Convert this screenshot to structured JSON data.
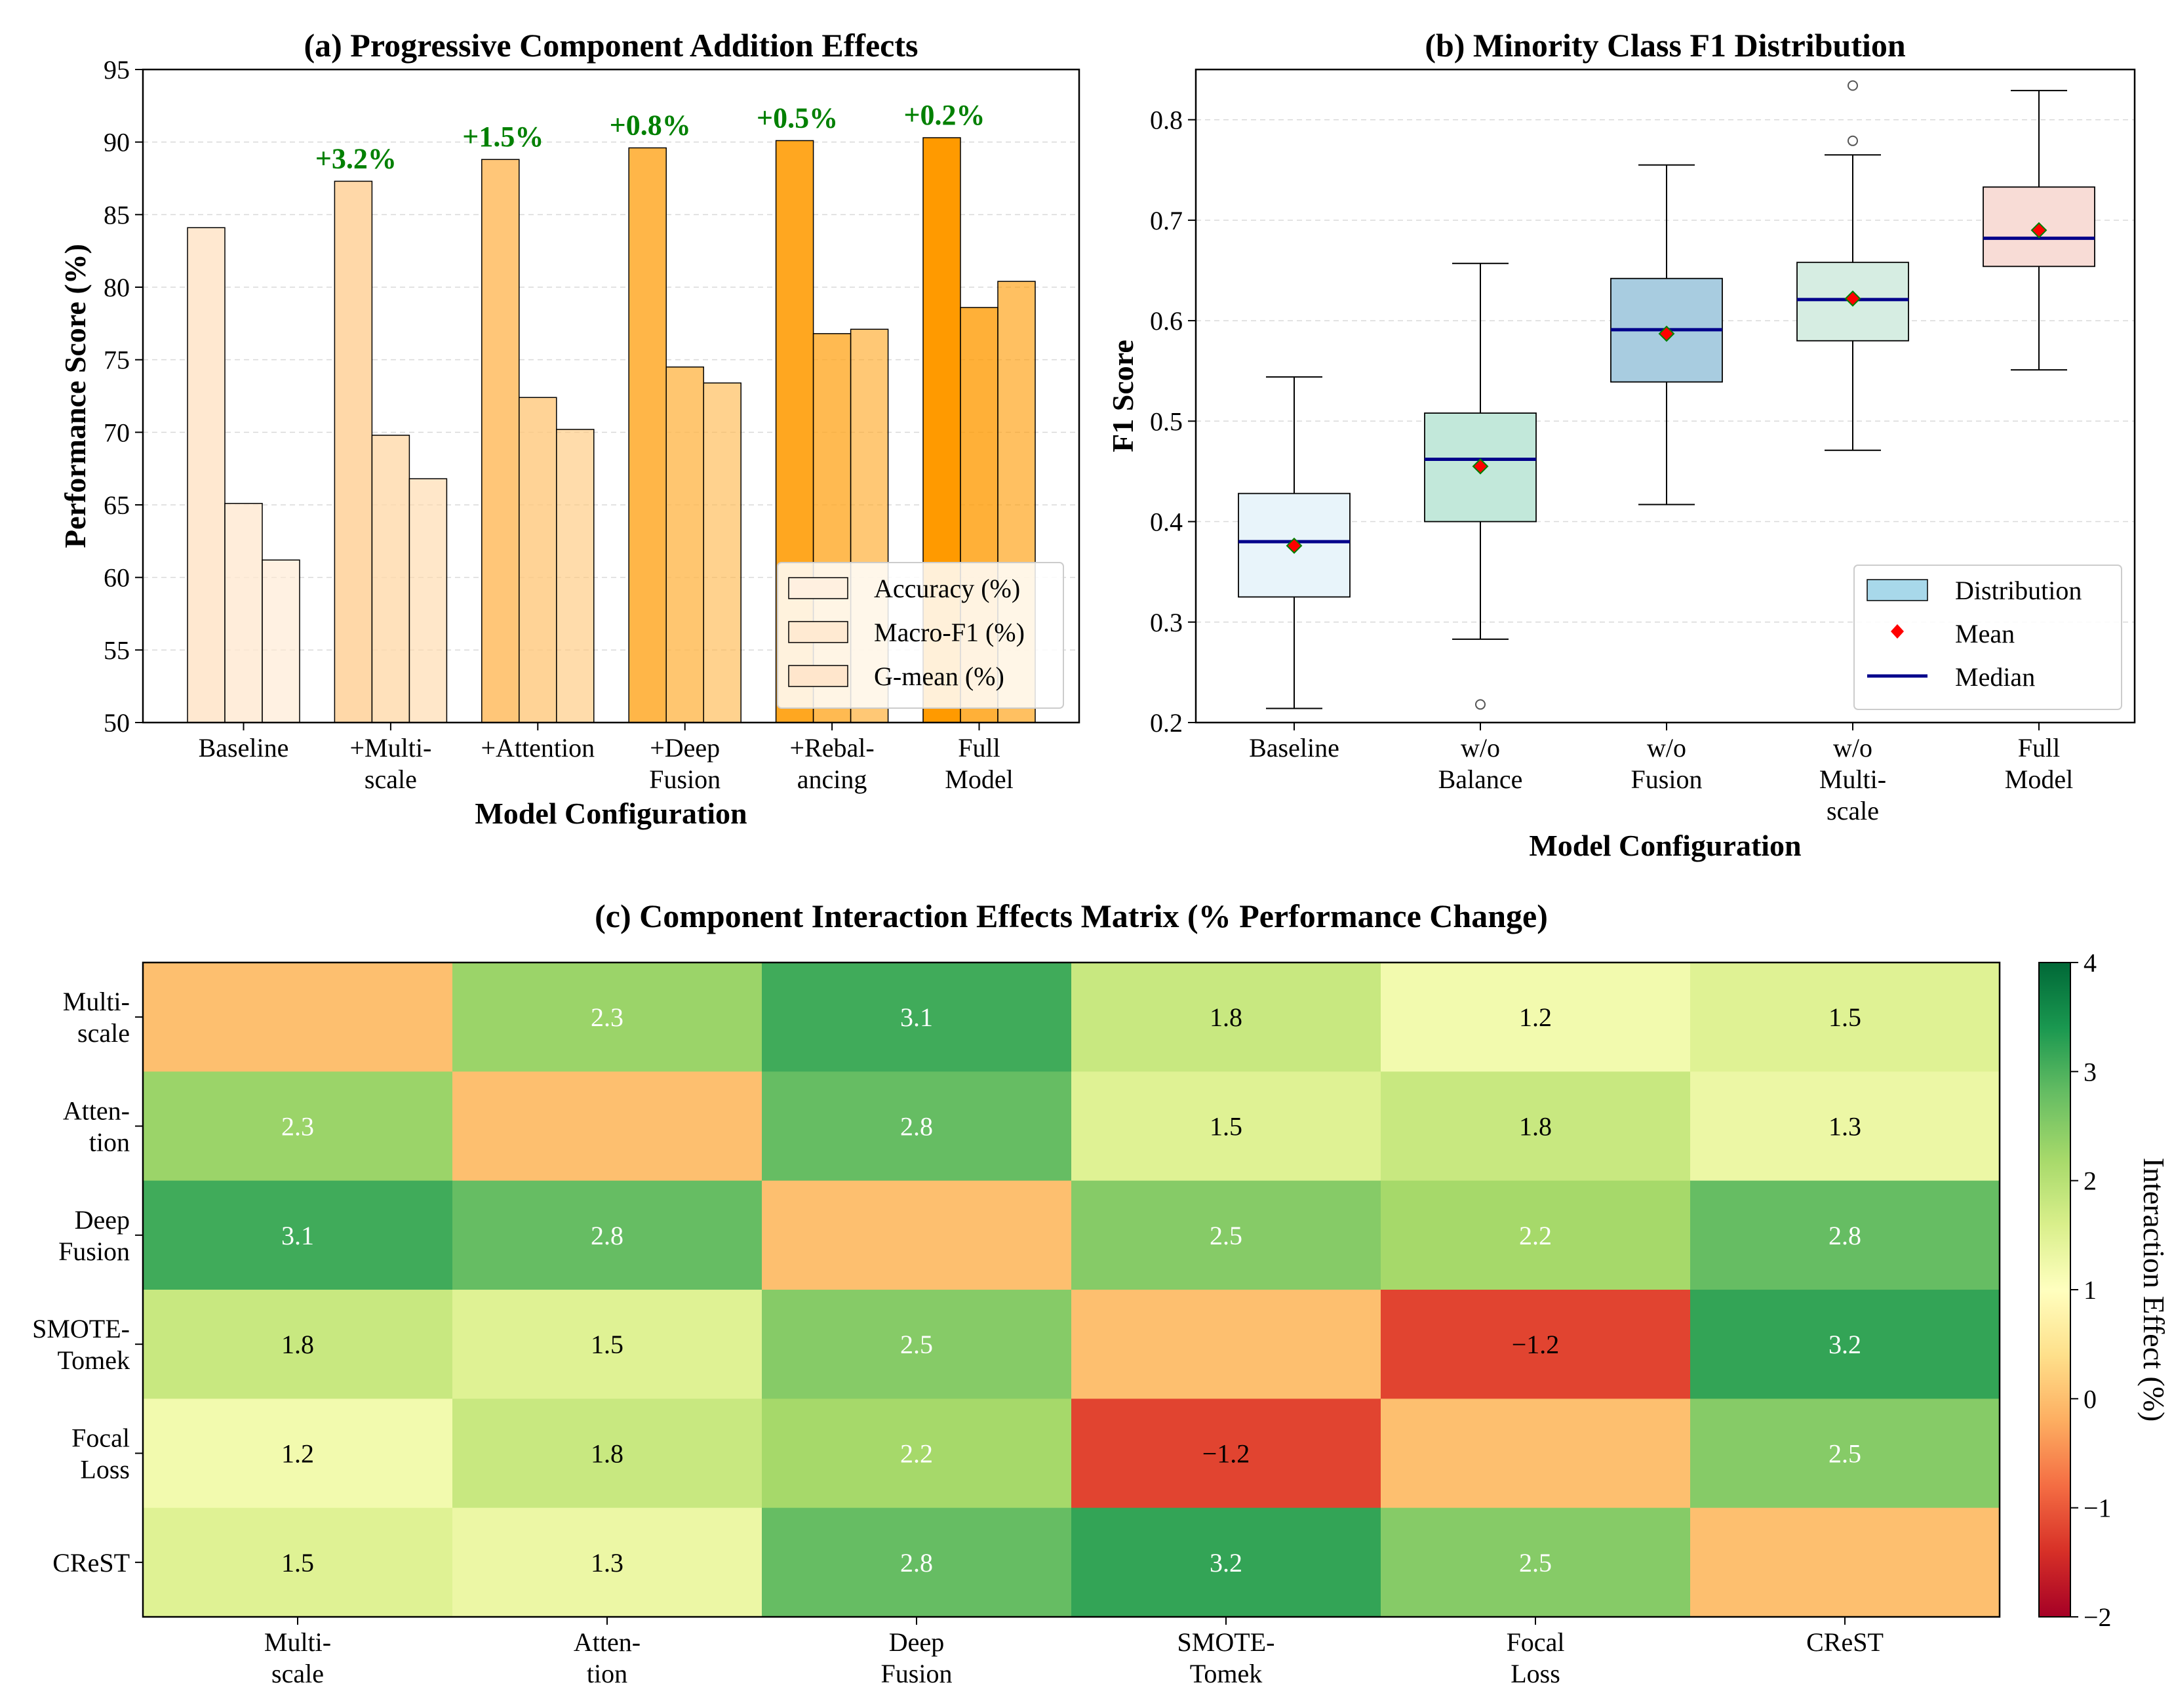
{
  "chart_data": [
    {
      "id": "a",
      "type": "bar",
      "title": "(a) Progressive Component Addition Effects",
      "xlabel": "Model Configuration",
      "ylabel": "Performance Score (%)",
      "ylim": [
        50,
        95
      ],
      "yticks": [
        "50",
        "55",
        "60",
        "65",
        "70",
        "75",
        "80",
        "85",
        "90",
        "95"
      ],
      "grid": true,
      "categories": [
        [
          "Baseline"
        ],
        [
          "+Multi-",
          "scale"
        ],
        [
          "+Attention"
        ],
        [
          "+Deep",
          "Fusion"
        ],
        [
          "+Rebal-",
          "ancing"
        ],
        [
          "Full",
          "Model"
        ]
      ],
      "series": [
        {
          "name": "Accuracy (%)",
          "values": [
            84.1,
            87.3,
            88.8,
            89.6,
            90.1,
            90.3
          ]
        },
        {
          "name": "Macro-F1 (%)",
          "values": [
            65.1,
            69.8,
            72.4,
            74.5,
            76.8,
            78.6
          ]
        },
        {
          "name": "G-mean (%)",
          "values": [
            61.2,
            66.8,
            70.2,
            73.4,
            77.1,
            80.4
          ]
        }
      ],
      "bar_colors": [
        "#FFE8D0",
        "#FFD8A8",
        "#FFC678",
        "#FFB648",
        "#FFA720",
        "#FF9A00"
      ],
      "annotations": [
        "",
        "+3.2%",
        "+1.5%",
        "+0.8%",
        "+0.5%",
        "+0.2%"
      ],
      "annotation_color": "#008000",
      "legend_position": "lower-right"
    },
    {
      "id": "b",
      "type": "box",
      "title": "(b) Minority Class F1 Distribution",
      "xlabel": "Model Configuration",
      "ylabel": "F1 Score",
      "ylim": [
        0.2,
        0.85
      ],
      "yticks": [
        "0.2",
        "0.3",
        "0.4",
        "0.5",
        "0.6",
        "0.7",
        "0.8"
      ],
      "grid": true,
      "categories": [
        [
          "Baseline"
        ],
        [
          "w/o",
          "Balance"
        ],
        [
          "w/o",
          "Fusion"
        ],
        [
          "w/o",
          "Multi-",
          "scale"
        ],
        [
          "Full",
          "Model"
        ]
      ],
      "boxes": [
        {
          "whisker_low": 0.214,
          "q1": 0.325,
          "median": 0.38,
          "q3": 0.428,
          "whisker_high": 0.544,
          "mean": 0.376,
          "outliers": []
        },
        {
          "whisker_low": 0.283,
          "q1": 0.4,
          "median": 0.462,
          "q3": 0.508,
          "whisker_high": 0.657,
          "mean": 0.455,
          "outliers": [
            0.218
          ]
        },
        {
          "whisker_low": 0.417,
          "q1": 0.539,
          "median": 0.591,
          "q3": 0.642,
          "whisker_high": 0.755,
          "mean": 0.587,
          "outliers": []
        },
        {
          "whisker_low": 0.471,
          "q1": 0.58,
          "median": 0.621,
          "q3": 0.658,
          "whisker_high": 0.765,
          "mean": 0.622,
          "outliers": [
            0.779,
            0.834
          ]
        },
        {
          "whisker_low": 0.551,
          "q1": 0.654,
          "median": 0.682,
          "q3": 0.733,
          "whisker_high": 0.829,
          "mean": 0.69,
          "outliers": []
        }
      ],
      "box_colors": [
        "#E8F4FA",
        "#C2E8DA",
        "#A8CCE0",
        "#D6EDE2",
        "#F8DCD6"
      ],
      "median_color": "#00008B",
      "mean_color": "#FF0000",
      "legend": [
        "Distribution",
        "Mean",
        "Median"
      ],
      "legend_position": "lower-right"
    },
    {
      "id": "c",
      "type": "heatmap",
      "title": "(c) Component Interaction Effects Matrix (% Performance Change)",
      "row_labels": [
        [
          "Multi-",
          "scale"
        ],
        [
          "Atten-",
          "tion"
        ],
        [
          "Deep",
          "Fusion"
        ],
        [
          "SMOTE-",
          "Tomek"
        ],
        [
          "Focal",
          "Loss"
        ],
        [
          "CReST"
        ]
      ],
      "col_labels": [
        [
          "Multi-",
          "scale"
        ],
        [
          "Atten-",
          "tion"
        ],
        [
          "Deep",
          "Fusion"
        ],
        [
          "SMOTE-",
          "Tomek"
        ],
        [
          "Focal",
          "Loss"
        ],
        [
          "CReST"
        ]
      ],
      "values": [
        [
          0,
          2.3,
          3.1,
          1.8,
          1.2,
          1.5
        ],
        [
          2.3,
          0,
          2.8,
          1.5,
          1.8,
          1.3
        ],
        [
          3.1,
          2.8,
          0,
          2.5,
          2.2,
          2.8
        ],
        [
          1.8,
          1.5,
          2.5,
          0,
          -1.2,
          3.2
        ],
        [
          1.2,
          1.8,
          2.2,
          -1.2,
          0,
          2.5
        ],
        [
          1.5,
          1.3,
          2.8,
          3.2,
          2.5,
          0
        ]
      ],
      "cell_labels": [
        [
          "",
          "2.3",
          "3.1",
          "1.8",
          "1.2",
          "1.5"
        ],
        [
          "2.3",
          "",
          "2.8",
          "1.5",
          "1.8",
          "1.3"
        ],
        [
          "3.1",
          "2.8",
          "",
          "2.5",
          "2.2",
          "2.8"
        ],
        [
          "1.8",
          "1.5",
          "2.5",
          "",
          "−1.2",
          "3.2"
        ],
        [
          "1.2",
          "1.8",
          "2.2",
          "−1.2",
          "",
          "2.5"
        ],
        [
          "1.5",
          "1.3",
          "2.8",
          "3.2",
          "2.5",
          ""
        ]
      ],
      "vmin": -2,
      "vmax": 4,
      "colormap": "RdYlGn",
      "colorbar_label": "Interaction Effect (%)",
      "colorbar_ticks": [
        "−2",
        "−1",
        "0",
        "1",
        "2",
        "3",
        "4"
      ]
    }
  ]
}
